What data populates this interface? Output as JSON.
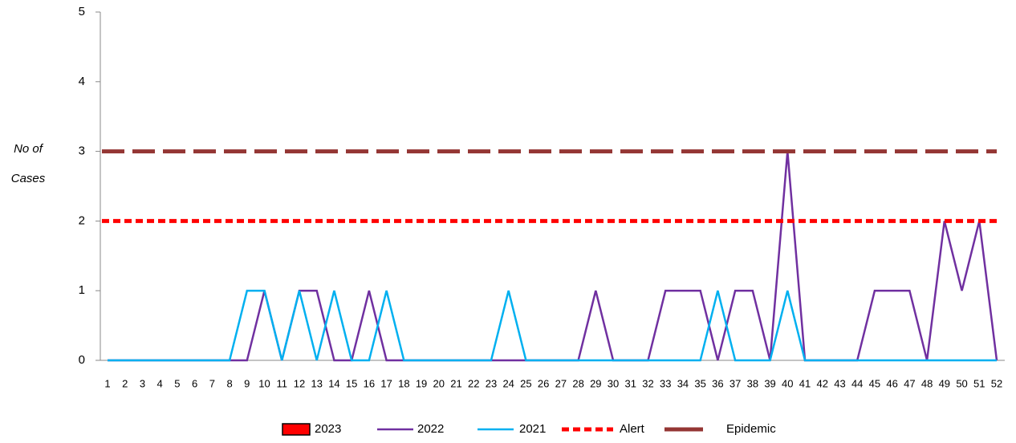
{
  "chart_data": {
    "type": "line",
    "y_label": [
      "No of",
      "Cases"
    ],
    "categories": [
      "1",
      "2",
      "3",
      "4",
      "5",
      "6",
      "7",
      "8",
      "9",
      "10",
      "11",
      "12",
      "13",
      "14",
      "15",
      "16",
      "17",
      "18",
      "19",
      "20",
      "21",
      "22",
      "23",
      "24",
      "25",
      "26",
      "27",
      "28",
      "29",
      "30",
      "31",
      "32",
      "33",
      "34",
      "35",
      "36",
      "37",
      "38",
      "39",
      "40",
      "41",
      "42",
      "43",
      "44",
      "45",
      "46",
      "47",
      "48",
      "49",
      "50",
      "51",
      "52"
    ],
    "series": [
      {
        "name": "2023",
        "color": "#ff0000"
      },
      {
        "name": "2022",
        "color": "#7030a0",
        "values": [
          0,
          0,
          0,
          0,
          0,
          0,
          0,
          0,
          0,
          1,
          0,
          1,
          1,
          0,
          0,
          1,
          0,
          0,
          0,
          0,
          0,
          0,
          0,
          0,
          0,
          0,
          0,
          0,
          1,
          0,
          0,
          0,
          1,
          1,
          1,
          0,
          1,
          1,
          0,
          3,
          0,
          0,
          0,
          0,
          1,
          1,
          1,
          0,
          2,
          1,
          2,
          0
        ]
      },
      {
        "name": "2021",
        "color": "#00b0f0",
        "values": [
          0,
          0,
          0,
          0,
          0,
          0,
          0,
          0,
          1,
          1,
          0,
          1,
          0,
          1,
          0,
          0,
          1,
          0,
          0,
          0,
          0,
          0,
          0,
          1,
          0,
          0,
          0,
          0,
          0,
          0,
          0,
          0,
          0,
          0,
          0,
          1,
          0,
          0,
          0,
          1,
          0,
          0,
          0,
          0,
          0,
          0,
          0,
          0,
          0,
          0,
          0,
          0
        ]
      },
      {
        "name": "Alert",
        "color": "#ff0000",
        "value": 2
      },
      {
        "name": "Epidemic",
        "color": "#943634",
        "value": 3
      }
    ],
    "ylim": [
      0,
      5
    ],
    "yticks": [
      0,
      1,
      2,
      3,
      4,
      5
    ]
  }
}
